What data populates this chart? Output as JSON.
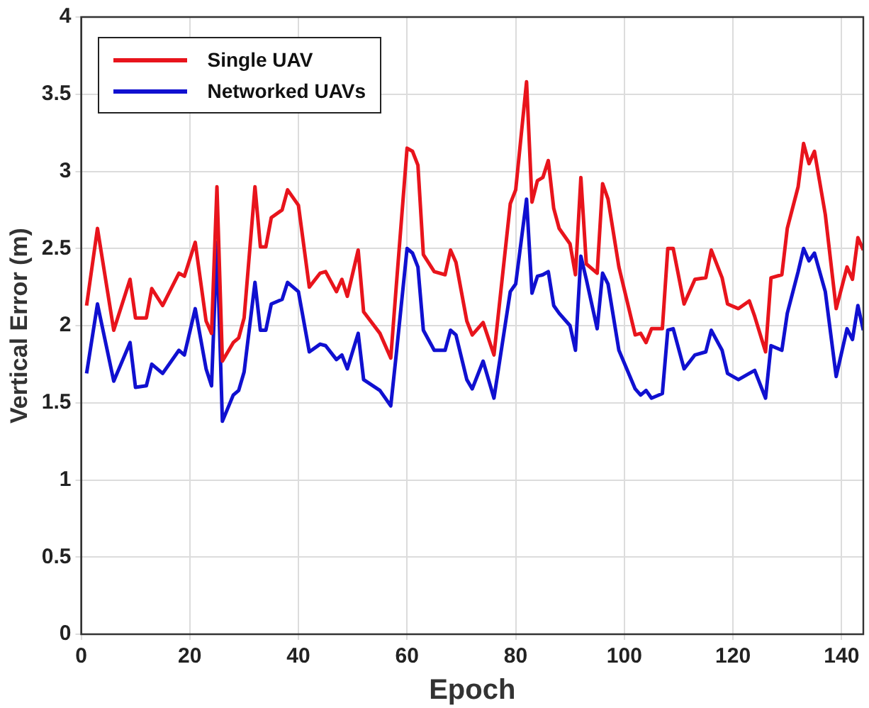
{
  "chart_data": {
    "type": "line",
    "xlabel": "Epoch",
    "ylabel": "Vertical Error (m)",
    "x": [
      1,
      3,
      6,
      9,
      10,
      12,
      13,
      15,
      18,
      19,
      21,
      23,
      24,
      25,
      26,
      28,
      29,
      30,
      32,
      33,
      34,
      35,
      37,
      38,
      40,
      42,
      44,
      45,
      47,
      48,
      49,
      51,
      52,
      55,
      57,
      58,
      60,
      61,
      62,
      63,
      65,
      67,
      68,
      69,
      71,
      72,
      74,
      76,
      79,
      80,
      82,
      83,
      84,
      85,
      86,
      87,
      88,
      90,
      91,
      92,
      93,
      95,
      96,
      97,
      99,
      102,
      103,
      104,
      105,
      107,
      108,
      109,
      111,
      113,
      115,
      116,
      118,
      119,
      121,
      123,
      124,
      126,
      127,
      129,
      130,
      132,
      133,
      134,
      135,
      137,
      139,
      141,
      142,
      143,
      144
    ],
    "series": [
      {
        "name": "Single UAV",
        "color": "#e8141c",
        "values": [
          2.13,
          2.63,
          1.97,
          2.3,
          2.05,
          2.05,
          2.24,
          2.13,
          2.34,
          2.32,
          2.54,
          2.03,
          1.95,
          2.9,
          1.77,
          1.89,
          1.92,
          2.05,
          2.9,
          2.51,
          2.51,
          2.7,
          2.75,
          2.88,
          2.78,
          2.25,
          2.34,
          2.35,
          2.22,
          2.3,
          2.19,
          2.49,
          2.09,
          1.95,
          1.79,
          2.25,
          3.15,
          3.13,
          3.04,
          2.46,
          2.35,
          2.33,
          2.49,
          2.41,
          2.03,
          1.94,
          2.02,
          1.81,
          2.79,
          2.88,
          3.58,
          2.8,
          2.94,
          2.96,
          3.07,
          2.76,
          2.63,
          2.53,
          2.33,
          2.96,
          2.4,
          2.34,
          2.92,
          2.82,
          2.38,
          1.94,
          1.95,
          1.89,
          1.98,
          1.98,
          2.5,
          2.5,
          2.14,
          2.3,
          2.31,
          2.49,
          2.31,
          2.14,
          2.11,
          2.16,
          2.06,
          1.83,
          2.31,
          2.33,
          2.63,
          2.9,
          3.18,
          3.05,
          3.13,
          2.72,
          2.11,
          2.38,
          2.3,
          2.57,
          2.49
        ]
      },
      {
        "name": "Networked UAVs",
        "color": "#1010d0",
        "values": [
          1.69,
          2.14,
          1.64,
          1.89,
          1.6,
          1.61,
          1.75,
          1.69,
          1.84,
          1.81,
          2.11,
          1.72,
          1.61,
          2.54,
          1.38,
          1.55,
          1.58,
          1.7,
          2.28,
          1.97,
          1.97,
          2.14,
          2.17,
          2.28,
          2.22,
          1.83,
          1.88,
          1.87,
          1.78,
          1.81,
          1.72,
          1.95,
          1.65,
          1.58,
          1.48,
          1.81,
          2.5,
          2.47,
          2.38,
          1.97,
          1.84,
          1.84,
          1.97,
          1.94,
          1.65,
          1.59,
          1.77,
          1.53,
          2.22,
          2.27,
          2.82,
          2.21,
          2.32,
          2.33,
          2.35,
          2.13,
          2.08,
          2,
          1.84,
          2.45,
          2.3,
          1.98,
          2.34,
          2.27,
          1.84,
          1.59,
          1.55,
          1.58,
          1.53,
          1.56,
          1.97,
          1.98,
          1.72,
          1.81,
          1.83,
          1.97,
          1.84,
          1.69,
          1.65,
          1.69,
          1.71,
          1.53,
          1.87,
          1.84,
          2.08,
          2.35,
          2.5,
          2.42,
          2.47,
          2.22,
          1.67,
          1.98,
          1.91,
          2.13,
          1.97
        ]
      }
    ],
    "xlim": [
      0,
      144
    ],
    "xticks": [
      0,
      20,
      40,
      60,
      80,
      100,
      120,
      140
    ],
    "ylim": [
      0,
      4
    ],
    "yticks": [
      0,
      0.5,
      1,
      1.5,
      2,
      2.5,
      3,
      3.5,
      4
    ],
    "grid": true,
    "legend": "top left",
    "marker": "none",
    "line_style": "solid"
  }
}
